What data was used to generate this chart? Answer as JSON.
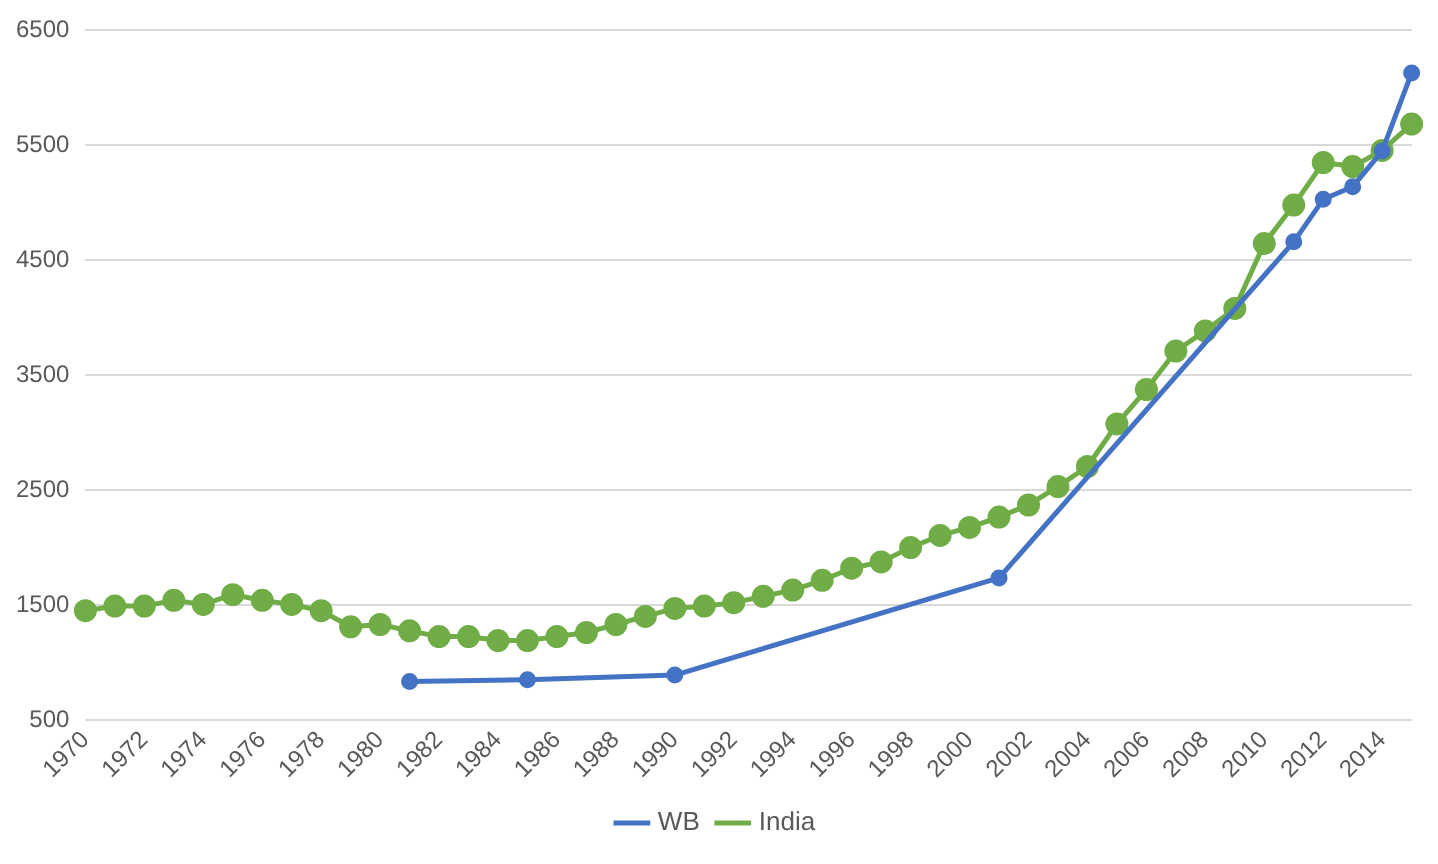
{
  "chart_data": {
    "type": "line",
    "categories": [
      "1970",
      null,
      "1972",
      null,
      "1974",
      null,
      "1976",
      null,
      "1978",
      null,
      "1980",
      null,
      "1982",
      null,
      "1984",
      null,
      "1986",
      null,
      "1988",
      null,
      "1990",
      null,
      "1992",
      null,
      "1994",
      null,
      "1996",
      null,
      "1998",
      null,
      "2000",
      null,
      "2002",
      null,
      "2004",
      null,
      "2006",
      null,
      "2008",
      null,
      "2010",
      null,
      "2012",
      null,
      "2014",
      null
    ],
    "series": [
      {
        "name": "WB",
        "color": "#4472c4",
        "values": [
          null,
          null,
          null,
          null,
          null,
          null,
          null,
          null,
          null,
          null,
          null,
          835,
          null,
          null,
          null,
          850,
          null,
          null,
          null,
          null,
          890,
          null,
          null,
          null,
          null,
          null,
          null,
          null,
          null,
          null,
          null,
          1735,
          null,
          null,
          null,
          null,
          null,
          null,
          null,
          null,
          null,
          4660,
          5030,
          5140,
          5450,
          6130
        ]
      },
      {
        "name": "India",
        "color": "#70ad47",
        "values": [
          1450,
          1490,
          1490,
          1540,
          1505,
          1590,
          1540,
          1505,
          1450,
          1310,
          1330,
          1275,
          1225,
          1225,
          1190,
          1190,
          1225,
          1260,
          1330,
          1400,
          1470,
          1490,
          1520,
          1575,
          1630,
          1715,
          1820,
          1875,
          2000,
          2105,
          2175,
          2265,
          2370,
          2530,
          2705,
          3075,
          3375,
          3710,
          3885,
          4080,
          4645,
          4980,
          5350,
          5315,
          5455,
          5685
        ]
      }
    ],
    "ylim": [
      500,
      6500
    ],
    "yticks": [
      500,
      1500,
      2500,
      3500,
      4500,
      5500,
      6500
    ],
    "grid": "y",
    "legend": "bottom",
    "marker": "circle",
    "line_style": "solid"
  }
}
